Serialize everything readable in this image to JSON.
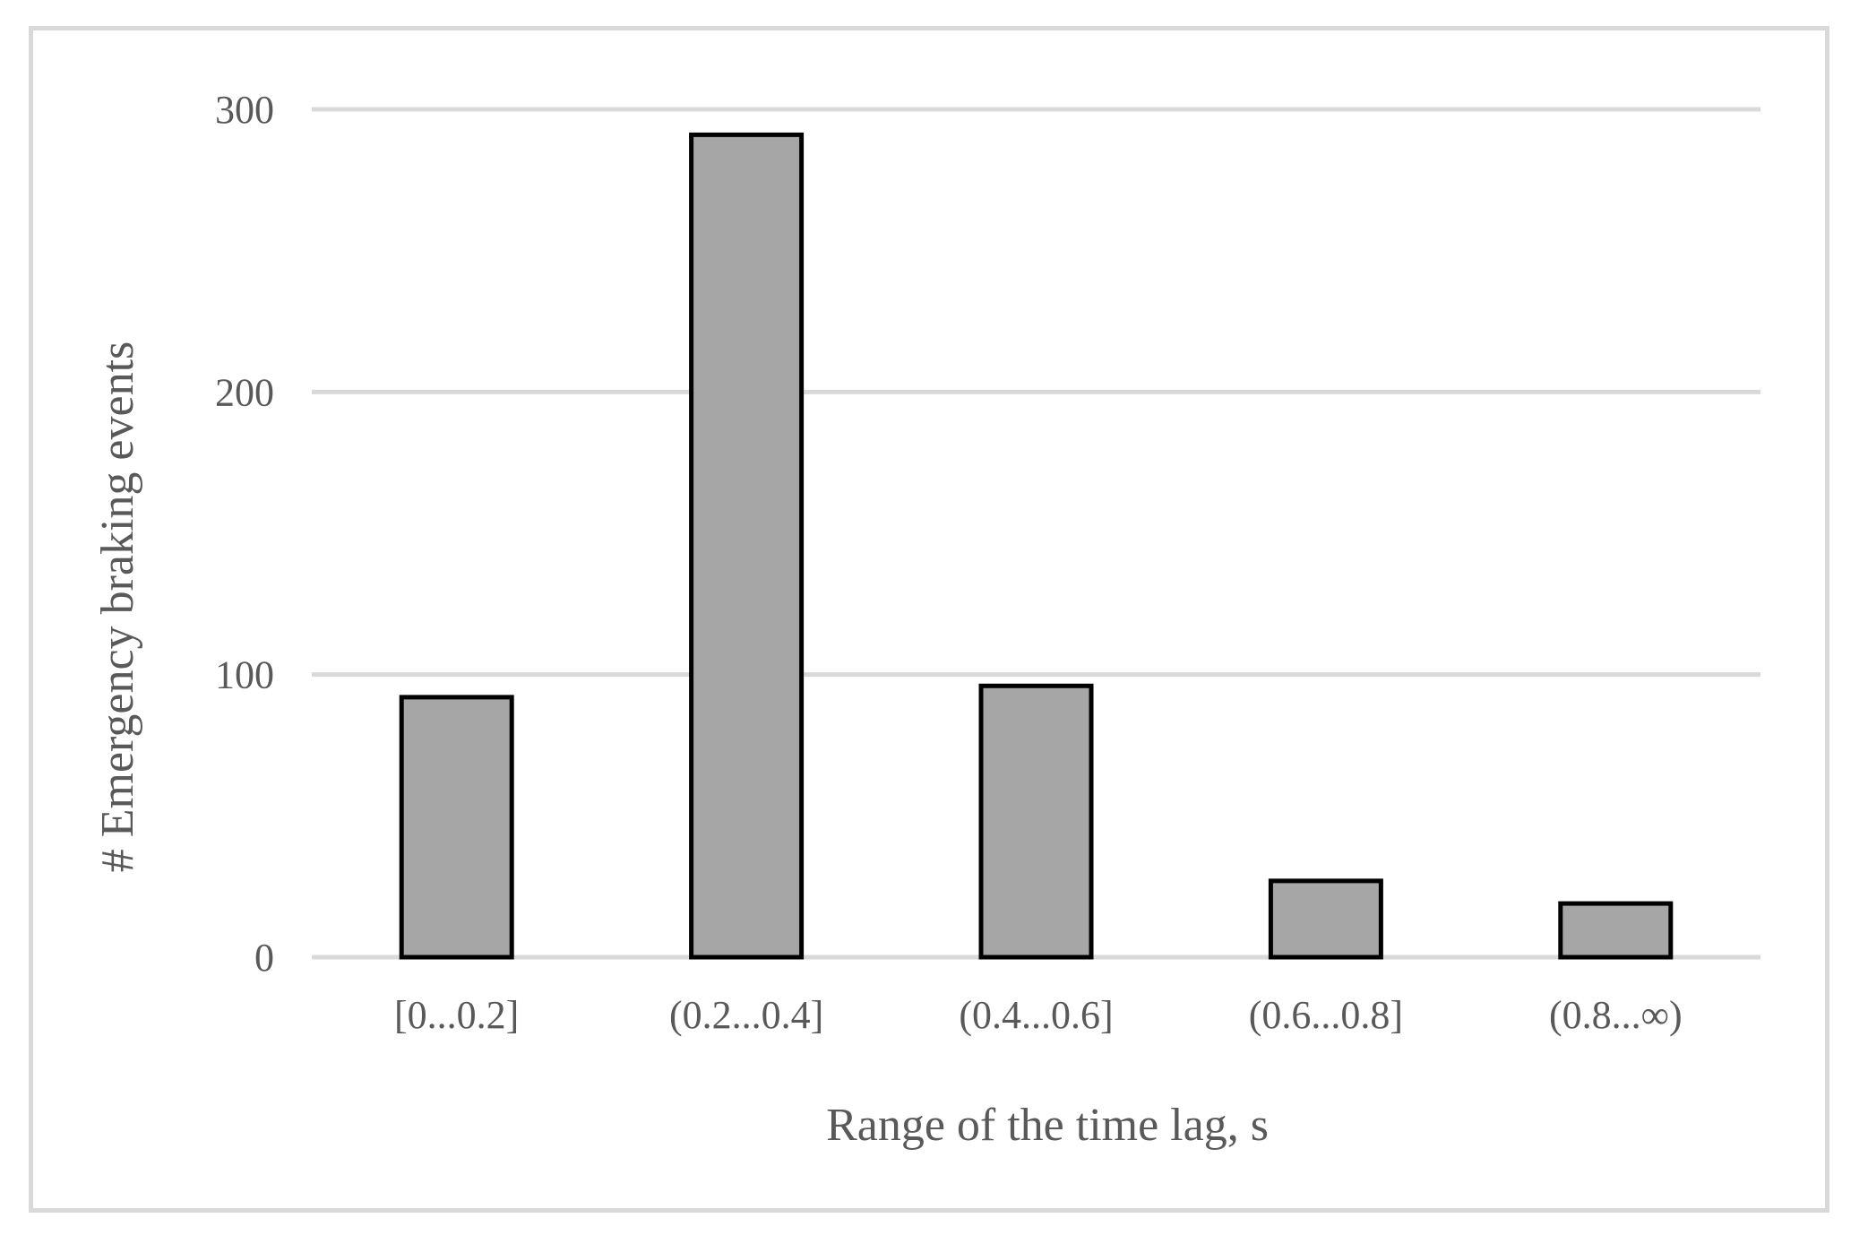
{
  "chart_data": {
    "type": "bar",
    "title": "",
    "xlabel": "Range of the time lag, s",
    "ylabel": "# Emergency braking events",
    "categories": [
      "[0...0.2]",
      "(0.2...0.4]",
      "(0.4...0.6]",
      "(0.6...0.8]",
      "(0.8...∞)"
    ],
    "values": [
      92,
      291,
      96,
      27,
      19
    ],
    "ylim": [
      0,
      300
    ],
    "yticks": [
      0,
      100,
      200,
      300
    ],
    "grid": true,
    "legend": "none",
    "colors": {
      "bar_fill": "#a6a6a6",
      "bar_edge": "#000000",
      "grid": "#d9d9d9",
      "text": "#595959",
      "frame": "#d9d9d9"
    }
  }
}
